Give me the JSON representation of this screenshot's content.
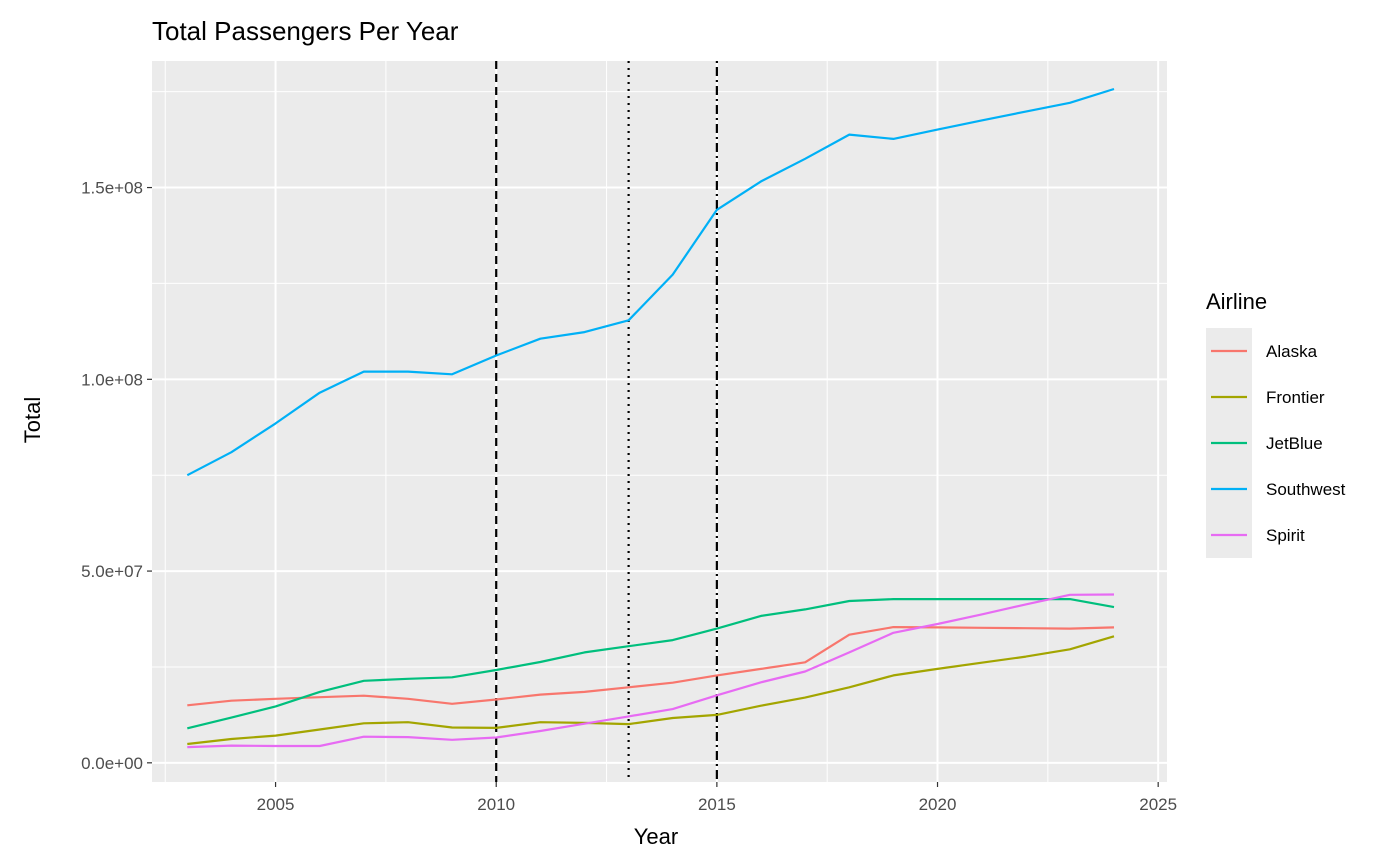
{
  "chart_data": {
    "type": "line",
    "title": "Total Passengers Per Year",
    "xlabel": "Year",
    "ylabel": "Total",
    "xlim": [
      2002.2,
      2025.2
    ],
    "ylim": [
      -5000000,
      183000000
    ],
    "x_ticks": [
      2005,
      2010,
      2015,
      2020,
      2025
    ],
    "x_minor_ticks": [
      2002.5,
      2007.5,
      2012.5,
      2017.5,
      2022.5
    ],
    "y_ticks": [
      0,
      50000000,
      100000000,
      150000000
    ],
    "y_tick_labels": [
      "0.0e+00",
      "5.0e+07",
      "1.0e+08",
      "1.5e+08"
    ],
    "y_minor_ticks": [
      25000000,
      75000000,
      125000000,
      175000000
    ],
    "grid": true,
    "panel_background": "#ebebeb",
    "legend": {
      "title": "Airline",
      "position": "right"
    },
    "vlines": [
      {
        "x": 2010,
        "style": "dashed"
      },
      {
        "x": 2013,
        "style": "dotted"
      },
      {
        "x": 2015,
        "style": "dashdot"
      }
    ],
    "x": [
      2003,
      2004,
      2005,
      2006,
      2007,
      2008,
      2009,
      2010,
      2011,
      2012,
      2013,
      2014,
      2015,
      2016,
      2017,
      2018,
      2019,
      2020,
      2021,
      2022,
      2023,
      2024
    ],
    "series": [
      {
        "name": "Alaska",
        "color": "#f8766d",
        "values": [
          15000000,
          16200000,
          16700000,
          17100000,
          17500000,
          16700000,
          15400000,
          16500000,
          17800000,
          18500000,
          19700000,
          20900000,
          22800000,
          24500000,
          26200000,
          33400000,
          35400000,
          35300000,
          35200000,
          35100000,
          35000000,
          35300000
        ]
      },
      {
        "name": "Frontier",
        "color": "#a3a500",
        "values": [
          4900000,
          6200000,
          7100000,
          8700000,
          10300000,
          10600000,
          9200000,
          9100000,
          10600000,
          10400000,
          10100000,
          11700000,
          12500000,
          14900000,
          17000000,
          19700000,
          22800000,
          24500000,
          26100000,
          27700000,
          29600000,
          33000000
        ]
      },
      {
        "name": "JetBlue",
        "color": "#00bf7d",
        "values": [
          9000000,
          11800000,
          14700000,
          18500000,
          21400000,
          21900000,
          22300000,
          24200000,
          26300000,
          28800000,
          30400000,
          32000000,
          35000000,
          38300000,
          40000000,
          42200000,
          42700000,
          42700000,
          42700000,
          42700000,
          42700000,
          40600000
        ]
      },
      {
        "name": "Southwest",
        "color": "#00b0f6",
        "values": [
          75000000,
          81000000,
          88500000,
          96500000,
          102000000,
          102000000,
          101300000,
          106200000,
          110600000,
          112300000,
          115400000,
          127300000,
          144200000,
          151600000,
          157500000,
          163800000,
          162700000,
          165100000,
          167500000,
          169800000,
          172100000,
          175700000
        ]
      },
      {
        "name": "Spirit",
        "color": "#e76bf3",
        "values": [
          4100000,
          4500000,
          4400000,
          4400000,
          6800000,
          6700000,
          6000000,
          6600000,
          8300000,
          10200000,
          12100000,
          14000000,
          17600000,
          21000000,
          23800000,
          28800000,
          33900000,
          36200000,
          38700000,
          41300000,
          43800000,
          43900000
        ]
      }
    ]
  }
}
